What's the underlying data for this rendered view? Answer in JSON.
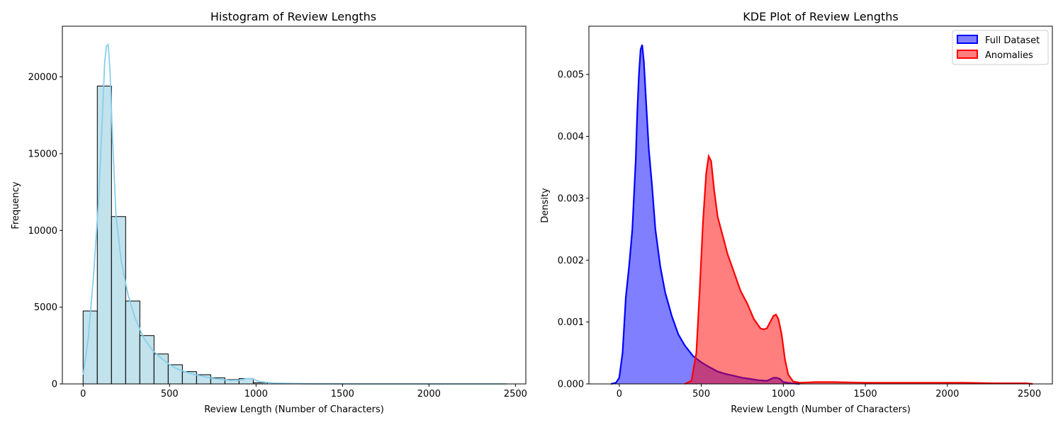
{
  "chart_data": [
    {
      "type": "bar",
      "title": "Histogram of Review Lengths",
      "xlabel": "Review Length (Number of Characters)",
      "ylabel": "Frequency",
      "xlim": [
        -120,
        2560
      ],
      "ylim": [
        0,
        23300
      ],
      "xticks": [
        0,
        500,
        1000,
        1500,
        2000,
        2500
      ],
      "yticks": [
        0,
        5000,
        10000,
        15000,
        20000
      ],
      "bar_color": "#add8e6",
      "edge_color": "#000000",
      "bins": [
        {
          "x0": 0,
          "x1": 82,
          "value": 4750
        },
        {
          "x0": 82,
          "x1": 164,
          "value": 19400
        },
        {
          "x0": 164,
          "x1": 246,
          "value": 10900
        },
        {
          "x0": 246,
          "x1": 328,
          "value": 5400
        },
        {
          "x0": 328,
          "x1": 410,
          "value": 3150
        },
        {
          "x0": 410,
          "x1": 492,
          "value": 1950
        },
        {
          "x0": 492,
          "x1": 574,
          "value": 1250
        },
        {
          "x0": 574,
          "x1": 656,
          "value": 800
        },
        {
          "x0": 656,
          "x1": 738,
          "value": 600
        },
        {
          "x0": 738,
          "x1": 820,
          "value": 400
        },
        {
          "x0": 820,
          "x1": 902,
          "value": 280
        },
        {
          "x0": 902,
          "x1": 984,
          "value": 350
        },
        {
          "x0": 984,
          "x1": 1066,
          "value": 80
        }
      ],
      "kde_line": {
        "color": "#87ceeb",
        "points": [
          [
            0,
            600
          ],
          [
            30,
            3000
          ],
          [
            60,
            7000
          ],
          [
            90,
            12000
          ],
          [
            110,
            17000
          ],
          [
            125,
            21000
          ],
          [
            135,
            22000
          ],
          [
            145,
            22100
          ],
          [
            155,
            20500
          ],
          [
            170,
            16000
          ],
          [
            190,
            11000
          ],
          [
            220,
            8000
          ],
          [
            260,
            5800
          ],
          [
            300,
            4300
          ],
          [
            350,
            3000
          ],
          [
            400,
            2200
          ],
          [
            450,
            1700
          ],
          [
            500,
            1250
          ],
          [
            550,
            950
          ],
          [
            600,
            750
          ],
          [
            650,
            600
          ],
          [
            700,
            480
          ],
          [
            750,
            360
          ],
          [
            800,
            280
          ],
          [
            850,
            230
          ],
          [
            900,
            240
          ],
          [
            950,
            350
          ],
          [
            980,
            330
          ],
          [
            1020,
            150
          ],
          [
            1100,
            50
          ],
          [
            1300,
            10
          ],
          [
            1600,
            0
          ],
          [
            2450,
            0
          ]
        ]
      }
    },
    {
      "type": "area",
      "title": "KDE Plot of Review Lengths",
      "xlabel": "Review Length (Number of Characters)",
      "ylabel": "Density",
      "xlim": [
        -185,
        2640
      ],
      "ylim": [
        0,
        0.00578
      ],
      "xticks": [
        0,
        500,
        1000,
        1500,
        2000,
        2500
      ],
      "yticks": [
        0.0,
        0.001,
        0.002,
        0.003,
        0.004,
        0.005
      ],
      "legend_position": "top-right",
      "series": [
        {
          "name": "Full Dataset",
          "color": "#0000ff",
          "points": [
            [
              -50,
              0
            ],
            [
              -20,
              2e-05
            ],
            [
              0,
              0.0001
            ],
            [
              20,
              0.0005
            ],
            [
              40,
              0.0014
            ],
            [
              60,
              0.0019
            ],
            [
              80,
              0.0025
            ],
            [
              100,
              0.0036
            ],
            [
              110,
              0.0044
            ],
            [
              120,
              0.005
            ],
            [
              130,
              0.0054
            ],
            [
              140,
              0.00548
            ],
            [
              150,
              0.0052
            ],
            [
              165,
              0.0045
            ],
            [
              180,
              0.0038
            ],
            [
              200,
              0.0032
            ],
            [
              220,
              0.0025
            ],
            [
              250,
              0.0019
            ],
            [
              280,
              0.00148
            ],
            [
              320,
              0.0011
            ],
            [
              360,
              0.0008
            ],
            [
              400,
              0.00062
            ],
            [
              450,
              0.00045
            ],
            [
              500,
              0.00035
            ],
            [
              550,
              0.00027
            ],
            [
              600,
              0.0002
            ],
            [
              650,
              0.00016
            ],
            [
              700,
              0.00013
            ],
            [
              750,
              0.0001
            ],
            [
              800,
              8e-05
            ],
            [
              850,
              6e-05
            ],
            [
              900,
              5e-05
            ],
            [
              940,
              0.0001
            ],
            [
              960,
              0.0001
            ],
            [
              980,
              8e-05
            ],
            [
              1000,
              3e-05
            ],
            [
              1050,
              1e-05
            ],
            [
              1100,
              0
            ]
          ]
        },
        {
          "name": "Anomalies",
          "color": "#ff0000",
          "points": [
            [
              400,
              0
            ],
            [
              440,
              5e-05
            ],
            [
              470,
              0.0005
            ],
            [
              490,
              0.0015
            ],
            [
              510,
              0.0026
            ],
            [
              530,
              0.0034
            ],
            [
              545,
              0.00368
            ],
            [
              560,
              0.0036
            ],
            [
              580,
              0.0031
            ],
            [
              600,
              0.0027
            ],
            [
              630,
              0.0024
            ],
            [
              660,
              0.0021
            ],
            [
              700,
              0.0018
            ],
            [
              740,
              0.0015
            ],
            [
              780,
              0.0013
            ],
            [
              820,
              0.00105
            ],
            [
              860,
              0.0009
            ],
            [
              880,
              0.00088
            ],
            [
              900,
              0.0009
            ],
            [
              920,
              0.001
            ],
            [
              940,
              0.0011
            ],
            [
              955,
              0.00112
            ],
            [
              970,
              0.00105
            ],
            [
              990,
              0.0008
            ],
            [
              1010,
              0.0004
            ],
            [
              1030,
              0.00015
            ],
            [
              1060,
              4e-05
            ],
            [
              1100,
              2e-05
            ],
            [
              1200,
              3e-05
            ],
            [
              1300,
              3e-05
            ],
            [
              1500,
              2e-05
            ],
            [
              1700,
              2e-05
            ],
            [
              1900,
              2e-05
            ],
            [
              2100,
              2e-05
            ],
            [
              2300,
              1e-05
            ],
            [
              2480,
              1e-05
            ],
            [
              2520,
              0
            ]
          ]
        }
      ]
    }
  ]
}
